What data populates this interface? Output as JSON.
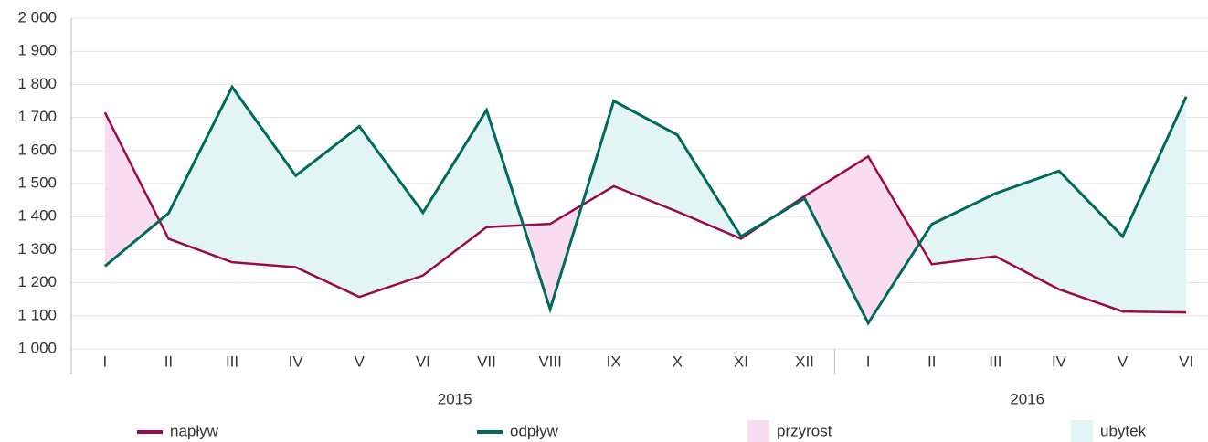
{
  "chart_data": {
    "type": "line",
    "groups": [
      {
        "label": "2015",
        "categories": [
          "I",
          "II",
          "III",
          "IV",
          "V",
          "VI",
          "VII",
          "VIII",
          "IX",
          "X",
          "XI",
          "XII"
        ]
      },
      {
        "label": "2016",
        "categories": [
          "I",
          "II",
          "III",
          "IV",
          "V",
          "VI"
        ]
      }
    ],
    "series": [
      {
        "name": "napływ",
        "color": "#9b0a4a",
        "values": [
          1715,
          1333,
          1262,
          1247,
          1157,
          1222,
          1368,
          1378,
          1492,
          1415,
          1333,
          1462,
          1582,
          1256,
          1280,
          1180,
          1113,
          1110
        ]
      },
      {
        "name": "odpływ",
        "color": "#006b5b",
        "values": [
          1250,
          1410,
          1792,
          1524,
          1673,
          1412,
          1722,
          1120,
          1750,
          1647,
          1340,
          1455,
          1078,
          1377,
          1470,
          1538,
          1340,
          1763
        ]
      }
    ],
    "fills": [
      {
        "name": "przyrost",
        "color": "#f9dcef"
      },
      {
        "name": "ubytek",
        "color": "#e3f4f4"
      }
    ],
    "ylim": [
      1000,
      2000
    ],
    "yticks": [
      {
        "value": 1000,
        "label": "1 000"
      },
      {
        "value": 1100,
        "label": "1 100"
      },
      {
        "value": 1200,
        "label": "1 200"
      },
      {
        "value": 1300,
        "label": "1 300"
      },
      {
        "value": 1400,
        "label": "1 400"
      },
      {
        "value": 1500,
        "label": "1 500"
      },
      {
        "value": 1600,
        "label": "1 600"
      },
      {
        "value": 1700,
        "label": "1 700"
      },
      {
        "value": 1800,
        "label": "1 800"
      },
      {
        "value": 1900,
        "label": "1 900"
      },
      {
        "value": 2000,
        "label": "2 000"
      }
    ],
    "grid": true
  }
}
